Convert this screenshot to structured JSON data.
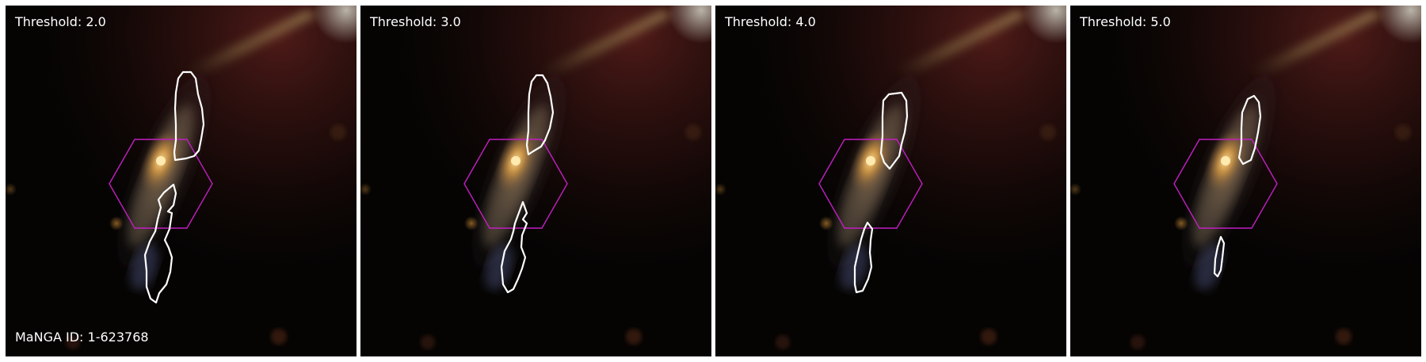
{
  "panels": [
    {
      "threshold_label": "Threshold: 2.0"
    },
    {
      "threshold_label": "Threshold: 3.0"
    },
    {
      "threshold_label": "Threshold: 4.0"
    },
    {
      "threshold_label": "Threshold: 5.0"
    }
  ],
  "galaxy_id_label": "MaNGA ID: 1-623768",
  "colors": {
    "contour": "#ffffff",
    "ifu_hexagon": "#c21fc2",
    "background": "#050403",
    "galaxy_core": "#ffd27a"
  }
}
